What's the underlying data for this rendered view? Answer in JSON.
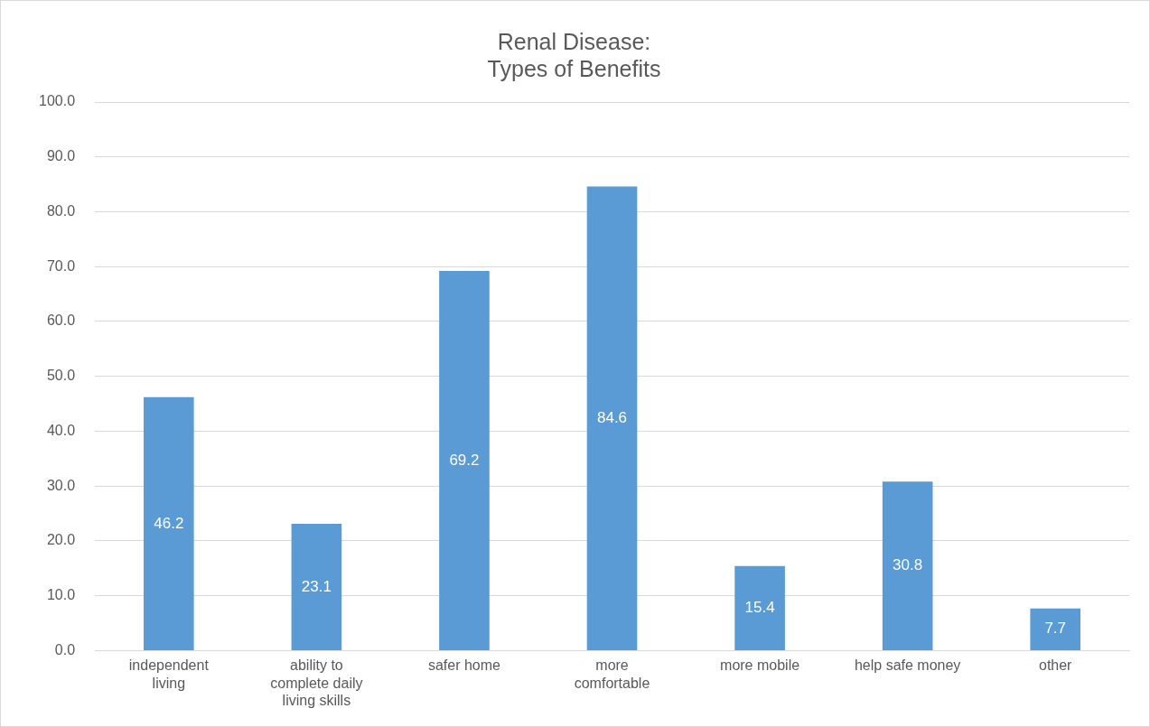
{
  "chart_data": {
    "type": "bar",
    "title": [
      "Renal Disease:",
      "Types of Benefits"
    ],
    "categories": [
      "independent living",
      "ability to complete daily living skills",
      "safer home",
      "more comfortable",
      "more mobile",
      "help safe money",
      "other"
    ],
    "values": [
      46.2,
      23.1,
      69.2,
      84.6,
      15.4,
      30.8,
      7.7
    ],
    "color": "#5b9bd5",
    "ylim": [
      0,
      100
    ],
    "yticks": [
      {
        "value": 0,
        "label": "0.0"
      },
      {
        "value": 10,
        "label": "10.0"
      },
      {
        "value": 20,
        "label": "20.0"
      },
      {
        "value": 30,
        "label": "30.0"
      },
      {
        "value": 40,
        "label": "40.0"
      },
      {
        "value": 50,
        "label": "50.0"
      },
      {
        "value": 60,
        "label": "60.0"
      },
      {
        "value": 70,
        "label": "70.0"
      },
      {
        "value": 80,
        "label": "80.0"
      },
      {
        "value": 90,
        "label": "90.0"
      },
      {
        "value": 100,
        "label": "100.0"
      }
    ],
    "grid": "y",
    "legend": false,
    "data_labels": true
  }
}
